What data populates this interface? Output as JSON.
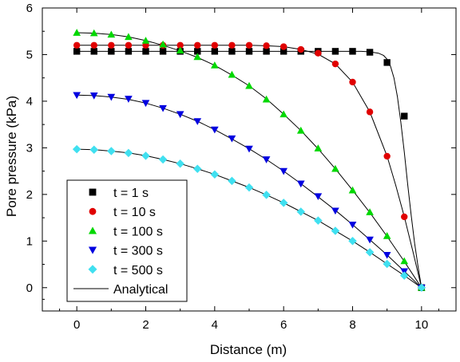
{
  "chart_data": {
    "type": "scatter",
    "xlabel": "Distance (m)",
    "ylabel": "Pore pressure (kPa)",
    "xlim": [
      -1,
      11
    ],
    "ylim": [
      -0.5,
      6
    ],
    "xticks": [
      0,
      2,
      4,
      6,
      8,
      10
    ],
    "yticks": [
      0,
      1,
      2,
      3,
      4,
      5,
      6
    ],
    "grid": false,
    "legend_position": "bottom-left",
    "series": [
      {
        "name": "t = 1 s",
        "marker": "square",
        "color": "#000000",
        "x": [
          0,
          0.5,
          1,
          1.5,
          2,
          2.5,
          3,
          3.5,
          4,
          4.5,
          5,
          5.5,
          6,
          6.5,
          7,
          7.5,
          8,
          8.5,
          9,
          9.5,
          10
        ],
        "y": [
          5.07,
          5.07,
          5.07,
          5.07,
          5.07,
          5.07,
          5.07,
          5.07,
          5.07,
          5.07,
          5.07,
          5.07,
          5.07,
          5.07,
          5.07,
          5.07,
          5.07,
          5.05,
          4.83,
          3.68,
          0.0
        ]
      },
      {
        "name": "t = 10 s",
        "marker": "circle",
        "color": "#e00000",
        "x": [
          0,
          0.5,
          1,
          1.5,
          2,
          2.5,
          3,
          3.5,
          4,
          4.5,
          5,
          5.5,
          6,
          6.5,
          7,
          7.5,
          8,
          8.5,
          9,
          9.5,
          10
        ],
        "y": [
          5.2,
          5.2,
          5.2,
          5.2,
          5.2,
          5.2,
          5.2,
          5.2,
          5.2,
          5.2,
          5.2,
          5.19,
          5.17,
          5.11,
          5.03,
          4.8,
          4.41,
          3.77,
          2.82,
          1.52,
          0.0
        ]
      },
      {
        "name": "t = 100 s",
        "marker": "triangle-up",
        "color": "#00d800",
        "x": [
          0,
          0.5,
          1,
          1.5,
          2,
          2.5,
          3,
          3.5,
          4,
          4.5,
          5,
          5.5,
          6,
          6.5,
          7,
          7.5,
          8,
          8.5,
          9,
          9.5,
          10
        ],
        "y": [
          5.47,
          5.46,
          5.43,
          5.38,
          5.3,
          5.22,
          5.09,
          4.95,
          4.77,
          4.57,
          4.33,
          4.04,
          3.72,
          3.37,
          2.99,
          2.55,
          2.09,
          1.62,
          1.11,
          0.57,
          0.0
        ]
      },
      {
        "name": "t = 300 s",
        "marker": "triangle-down",
        "color": "#0000e0",
        "x": [
          0,
          0.5,
          1,
          1.5,
          2,
          2.5,
          3,
          3.5,
          4,
          4.5,
          5,
          5.5,
          6,
          6.5,
          7,
          7.5,
          8,
          8.5,
          9,
          9.5,
          10
        ],
        "y": [
          4.13,
          4.12,
          4.09,
          4.05,
          3.96,
          3.85,
          3.72,
          3.57,
          3.39,
          3.2,
          2.98,
          2.75,
          2.5,
          2.23,
          1.96,
          1.65,
          1.35,
          1.03,
          0.7,
          0.35,
          0.0
        ]
      },
      {
        "name": "t = 500 s",
        "marker": "diamond",
        "color": "#40e0f0",
        "x": [
          0,
          0.5,
          1,
          1.5,
          2,
          2.5,
          3,
          3.5,
          4,
          4.5,
          5,
          5.5,
          6,
          6.5,
          7,
          7.5,
          8,
          8.5,
          9,
          9.5,
          10
        ],
        "y": [
          2.97,
          2.96,
          2.93,
          2.89,
          2.83,
          2.75,
          2.66,
          2.55,
          2.43,
          2.29,
          2.15,
          1.99,
          1.82,
          1.63,
          1.44,
          1.22,
          1.0,
          0.76,
          0.51,
          0.26,
          0.0
        ]
      }
    ],
    "analytical": {
      "name": "Analytical",
      "color": "#000000",
      "curves": [
        {
          "x": [
            0,
            1,
            2,
            3,
            4,
            5,
            6,
            7,
            7.5,
            8,
            8.25,
            8.5,
            8.75,
            8.9,
            9.0,
            9.1,
            9.2,
            9.3,
            9.4,
            9.5,
            9.6,
            9.7,
            9.8,
            9.9,
            10
          ],
          "y": [
            5.07,
            5.07,
            5.07,
            5.07,
            5.07,
            5.07,
            5.07,
            5.07,
            5.07,
            5.07,
            5.07,
            5.06,
            5.03,
            4.98,
            4.9,
            4.75,
            4.5,
            4.1,
            3.55,
            2.9,
            2.2,
            1.55,
            0.95,
            0.45,
            0.0
          ]
        },
        {
          "x": [
            0,
            1,
            2,
            3,
            4,
            5,
            5.5,
            6,
            6.5,
            7,
            7.5,
            8,
            8.5,
            9,
            9.25,
            9.5,
            9.75,
            10
          ],
          "y": [
            5.2,
            5.2,
            5.2,
            5.2,
            5.2,
            5.2,
            5.19,
            5.17,
            5.11,
            5.01,
            4.8,
            4.41,
            3.77,
            2.82,
            2.2,
            1.52,
            0.78,
            0.0
          ]
        },
        {
          "x": [
            0,
            0.5,
            1,
            1.5,
            2,
            2.5,
            3,
            3.5,
            4,
            4.5,
            5,
            5.5,
            6,
            6.5,
            7,
            7.5,
            8,
            8.5,
            9,
            9.5,
            10
          ],
          "y": [
            5.47,
            5.46,
            5.43,
            5.38,
            5.3,
            5.2,
            5.08,
            4.94,
            4.77,
            4.56,
            4.33,
            4.05,
            3.72,
            3.37,
            2.98,
            2.55,
            2.09,
            1.61,
            1.1,
            0.56,
            0.0
          ]
        },
        {
          "x": [
            0,
            0.5,
            1,
            1.5,
            2,
            2.5,
            3,
            3.5,
            4,
            4.5,
            5,
            5.5,
            6,
            6.5,
            7,
            7.5,
            8,
            8.5,
            9,
            9.5,
            10
          ],
          "y": [
            4.13,
            4.12,
            4.09,
            4.04,
            3.96,
            3.85,
            3.72,
            3.57,
            3.39,
            3.19,
            2.98,
            2.75,
            2.5,
            2.23,
            1.95,
            1.66,
            1.35,
            1.03,
            0.7,
            0.35,
            0.0
          ]
        },
        {
          "x": [
            0,
            0.5,
            1,
            1.5,
            2,
            2.5,
            3,
            3.5,
            4,
            4.5,
            5,
            5.5,
            6,
            6.5,
            7,
            7.5,
            8,
            8.5,
            9,
            9.5,
            10
          ],
          "y": [
            2.97,
            2.96,
            2.93,
            2.89,
            2.83,
            2.75,
            2.66,
            2.55,
            2.43,
            2.29,
            2.15,
            1.99,
            1.82,
            1.63,
            1.44,
            1.22,
            1.0,
            0.76,
            0.51,
            0.26,
            0.0
          ]
        }
      ]
    }
  }
}
